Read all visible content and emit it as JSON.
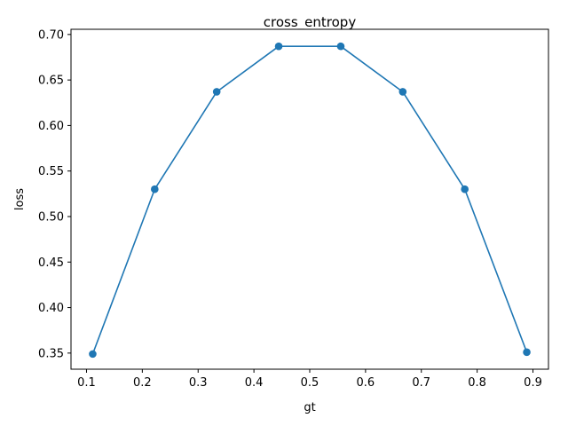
{
  "chart_data": {
    "type": "line",
    "title": "cross_entropy",
    "xlabel": "gt",
    "ylabel": "loss",
    "x": [
      0.1111,
      0.2222,
      0.3333,
      0.4444,
      0.5556,
      0.6667,
      0.7778,
      0.8889
    ],
    "series": [
      {
        "values": [
          0.349,
          0.53,
          0.637,
          0.687,
          0.687,
          0.637,
          0.53,
          0.351
        ],
        "color": "#1f77b4",
        "marker": "circle"
      }
    ],
    "xlim": [
      0.0722,
      0.9278
    ],
    "ylim": [
      0.3323,
      0.7057
    ],
    "xticks": [
      0.1,
      0.2,
      0.3,
      0.4,
      0.5,
      0.6,
      0.7,
      0.8,
      0.9
    ],
    "xtick_labels": [
      "0.1",
      "0.2",
      "0.3",
      "0.4",
      "0.5",
      "0.6",
      "0.7",
      "0.8",
      "0.9"
    ],
    "yticks": [
      0.35,
      0.4,
      0.45,
      0.5,
      0.55,
      0.6,
      0.65,
      0.7
    ],
    "ytick_labels": [
      "0.35",
      "0.40",
      "0.45",
      "0.50",
      "0.55",
      "0.60",
      "0.65",
      "0.70"
    ],
    "grid": false,
    "legend": false
  }
}
